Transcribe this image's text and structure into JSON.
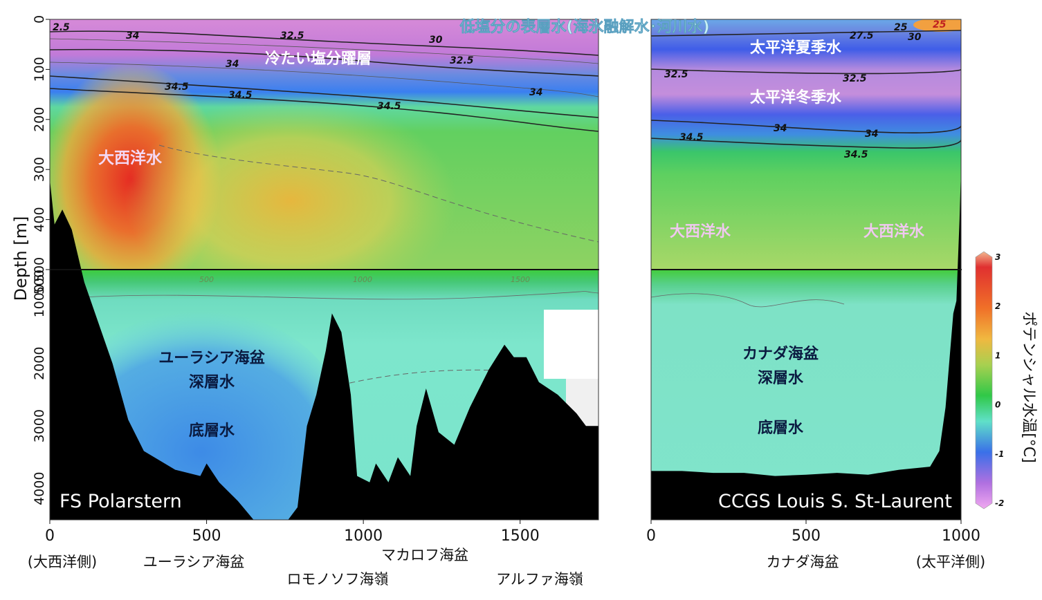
{
  "chart_data": {
    "type": "heatmap",
    "title": "低塩分の表層水(海氷融解水･河川水)",
    "ylabel": "Depth [m]",
    "colorbar": {
      "label": "ポテンシャル水温[°C]",
      "ticks": [
        3,
        2,
        1,
        0,
        -1,
        -2
      ],
      "range": [
        -2,
        3
      ],
      "colors": [
        "#e060e0",
        "#3a5fe0",
        "#60e0c8",
        "#2ecc40",
        "#a0d850",
        "#f0c040",
        "#f08020",
        "#e02020"
      ]
    },
    "y_ticks_upper": [
      "0",
      "100",
      "200",
      "300",
      "400",
      "500"
    ],
    "y_ticks_lower": [
      "500",
      "1000",
      "2000",
      "3000",
      "4000"
    ],
    "y_upper_range": [
      0,
      500
    ],
    "y_lower_range": [
      500,
      4500
    ],
    "panels": [
      {
        "ship": "FS Polarstern",
        "x_ticks": [
          "0",
          "500",
          "1000",
          "1500"
        ],
        "x_range": [
          0,
          1750
        ],
        "inner_x_ticks": [
          "500",
          "1000",
          "1500"
        ],
        "contour_labels": [
          "2.5",
          "34",
          "32.5",
          "30",
          "32.5",
          "34",
          "34.5",
          "34.5",
          "34",
          "34.5"
        ],
        "water_labels": [
          "冷たい塩分躍層",
          "大西洋水",
          "ユーラシア海盆",
          "深層水",
          "底層水"
        ],
        "bottom_labels": [
          "(大西洋側)",
          "ユーラシア海盆",
          "ロモノソフ海嶺",
          "マカロフ海盆",
          "アルファ海嶺"
        ],
        "bathymetry": [
          [
            0,
            320
          ],
          [
            15,
            410
          ],
          [
            40,
            380
          ],
          [
            70,
            420
          ],
          [
            110,
            700
          ],
          [
            200,
            2000
          ],
          [
            250,
            2900
          ],
          [
            300,
            3400
          ],
          [
            400,
            3700
          ],
          [
            480,
            3800
          ],
          [
            500,
            3600
          ],
          [
            540,
            3900
          ],
          [
            600,
            4200
          ],
          [
            650,
            4500
          ],
          [
            760,
            4500
          ],
          [
            790,
            4300
          ],
          [
            820,
            3000
          ],
          [
            850,
            2500
          ],
          [
            880,
            1800
          ],
          [
            900,
            1200
          ],
          [
            930,
            1500
          ],
          [
            960,
            2500
          ],
          [
            980,
            3800
          ],
          [
            1020,
            3900
          ],
          [
            1040,
            3600
          ],
          [
            1080,
            3900
          ],
          [
            1110,
            3500
          ],
          [
            1150,
            3800
          ],
          [
            1170,
            3000
          ],
          [
            1200,
            2400
          ],
          [
            1240,
            3100
          ],
          [
            1290,
            3300
          ],
          [
            1340,
            2700
          ],
          [
            1400,
            2100
          ],
          [
            1450,
            1700
          ],
          [
            1480,
            1900
          ],
          [
            1520,
            1900
          ],
          [
            1560,
            2300
          ],
          [
            1620,
            2500
          ],
          [
            1680,
            2800
          ],
          [
            1710,
            3000
          ],
          [
            1750,
            3000
          ]
        ]
      },
      {
        "ship": "CCGS Louis S. St-Laurent",
        "x_ticks": [
          "0",
          "500",
          "1000"
        ],
        "x_range": [
          0,
          1000
        ],
        "contour_labels": [
          "27.5",
          "25",
          "25",
          "30",
          "32.5",
          "32.5",
          "34",
          "34",
          "34.5",
          "34.5"
        ],
        "water_labels": [
          "太平洋夏季水",
          "太平洋冬季水",
          "大西洋水",
          "大西洋水",
          "カナダ海盆",
          "深層水",
          "底層水"
        ],
        "bottom_labels": [
          "カナダ海盆",
          "(太平洋側)"
        ],
        "bathymetry": [
          [
            0,
            3720
          ],
          [
            100,
            3720
          ],
          [
            200,
            3750
          ],
          [
            300,
            3750
          ],
          [
            400,
            3800
          ],
          [
            500,
            3780
          ],
          [
            600,
            3750
          ],
          [
            700,
            3780
          ],
          [
            800,
            3700
          ],
          [
            900,
            3650
          ],
          [
            930,
            3400
          ],
          [
            950,
            2700
          ],
          [
            965,
            1800
          ],
          [
            975,
            1200
          ],
          [
            985,
            1000
          ],
          [
            995,
            400
          ],
          [
            1000,
            300
          ]
        ]
      }
    ]
  }
}
